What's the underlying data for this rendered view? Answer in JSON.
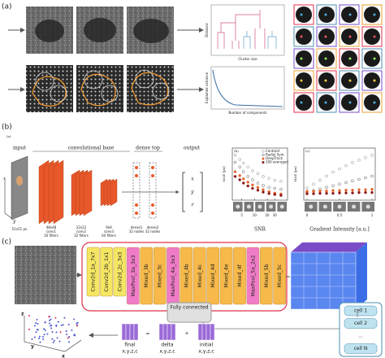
{
  "panel_a": {
    "label": "(a)",
    "dendrogram": {
      "y_label": "Distance",
      "x_label": "Cluster size"
    },
    "pca": {
      "y_label": "Explained variance",
      "x_label": "Number of components"
    }
  },
  "panel_b": {
    "label": "(b)",
    "sublabel": "(a)",
    "network": {
      "input": "input",
      "conv_base": "convolutional base",
      "dense_top": "dense top",
      "output": "output",
      "input_size": "51x51 px",
      "layers": [
        {
          "size": "48x48",
          "name": "conv1",
          "filters": "16 filters"
        },
        {
          "size": "22x22",
          "name": "conv2",
          "filters": "32 filters"
        },
        {
          "size": "9x9",
          "name": "conv3",
          "filters": "64 filters"
        }
      ],
      "dense": [
        {
          "name": "dense1",
          "nodes": "32 nodes"
        },
        {
          "name": "dense2",
          "nodes": "32 nodes"
        }
      ],
      "outputs": [
        "x",
        "y",
        "r"
      ],
      "axes": [
        "x",
        "y"
      ]
    },
    "plot_b": {
      "label": "(b)",
      "y_label": "MAE [px]",
      "x_label": "SNR",
      "log_x": true,
      "xlim": [
        3,
        60
      ],
      "xticks": [
        5,
        10,
        20,
        30
      ],
      "ylim": [
        0,
        1.1
      ],
      "x": [
        3.5,
        4.5,
        5.5,
        7,
        9,
        12,
        16,
        22,
        30,
        42
      ],
      "series": [
        {
          "name": "Centroid",
          "color": "#888888",
          "marker": "open",
          "values": [
            0.95,
            0.86,
            0.78,
            0.7,
            0.62,
            0.56,
            0.5,
            0.46,
            0.42,
            0.4
          ]
        },
        {
          "name": "Radial Sym.",
          "color": "#555555",
          "marker": "open",
          "values": [
            0.8,
            0.7,
            0.6,
            0.5,
            0.43,
            0.36,
            0.31,
            0.27,
            0.25,
            0.23
          ]
        },
        {
          "name": "DeepTrack",
          "color": "#e8642c",
          "marker": "filled",
          "values": [
            0.6,
            0.52,
            0.45,
            0.38,
            0.32,
            0.27,
            0.22,
            0.18,
            0.15,
            0.13
          ]
        },
        {
          "name": "100 averaged",
          "color": "#8b1a1a",
          "marker": "filled",
          "values": [
            0.5,
            0.43,
            0.36,
            0.3,
            0.25,
            0.21,
            0.17,
            0.14,
            0.12,
            0.1
          ]
        }
      ]
    },
    "plot_c": {
      "label": "(c)",
      "y_label": "MAE [px]",
      "x_label": "Gradient Intensity [a.u.]",
      "log_x": false,
      "xlim": [
        -0.05,
        1.05
      ],
      "xticks": [
        0,
        0.5,
        1
      ],
      "ylim": [
        0,
        1.3
      ],
      "x": [
        0,
        0.1,
        0.2,
        0.3,
        0.4,
        0.5,
        0.6,
        0.7,
        0.8,
        0.9,
        1
      ],
      "series": [
        {
          "color": "#888888",
          "marker": "open",
          "values": [
            0.3,
            0.4,
            0.5,
            0.6,
            0.7,
            0.78,
            0.86,
            0.94,
            1.0,
            1.06,
            1.12
          ]
        },
        {
          "color": "#555555",
          "marker": "open",
          "values": [
            0.2,
            0.24,
            0.28,
            0.32,
            0.36,
            0.4,
            0.44,
            0.48,
            0.52,
            0.56,
            0.6
          ]
        },
        {
          "color": "#e8642c",
          "marker": "filled",
          "values": [
            0.22,
            0.22,
            0.23,
            0.23,
            0.24,
            0.24,
            0.25,
            0.25,
            0.26,
            0.26,
            0.27
          ]
        },
        {
          "color": "#8b1a1a",
          "marker": "filled",
          "values": [
            0.16,
            0.16,
            0.17,
            0.17,
            0.17,
            0.18,
            0.18,
            0.18,
            0.19,
            0.19,
            0.19
          ]
        }
      ]
    }
  },
  "panel_c": {
    "label": "(c)",
    "blocks": [
      {
        "label": "Conv2d_1a_7x7",
        "color": "#f5e663"
      },
      {
        "label": "Conv2d_2b_1x1",
        "color": "#f5e663"
      },
      {
        "label": "Conv2d_2c_3x3",
        "color": "#f5e663"
      },
      {
        "label": "MaxPool_3a_3x3",
        "color": "#f07cc8"
      },
      {
        "label": "Mixed_3b",
        "color": "#f7b94a"
      },
      {
        "label": "Mixed_3c",
        "color": "#f7b94a"
      },
      {
        "label": "MaxPool_4a_3x3",
        "color": "#f07cc8"
      },
      {
        "label": "Mixed_4b",
        "color": "#f7b94a"
      },
      {
        "label": "Mixed_4c",
        "color": "#f7b94a"
      },
      {
        "label": "Mixed_4d",
        "color": "#f7b94a"
      },
      {
        "label": "Mixed_4e",
        "color": "#f7b94a"
      },
      {
        "label": "Mixed_4f",
        "color": "#f7b94a"
      },
      {
        "label": "MaxPool_5a_2x2",
        "color": "#f07cc8"
      },
      {
        "label": "Mixed_5b",
        "color": "#f7b94a"
      },
      {
        "label": "Mixed_5c",
        "color": "#f7b94a"
      }
    ],
    "fc": "Fully connected",
    "cells": [
      "cell 1",
      "cell 2",
      "...",
      "cell N"
    ],
    "final": {
      "name": "final",
      "vars": "x,y,z,c"
    },
    "delta": {
      "name": "delta",
      "vars": "x,y,z,c"
    },
    "initial": {
      "name": "initial",
      "vars": "x,y,z,c"
    },
    "equals": "=",
    "plus": "+",
    "axes": [
      "z",
      "y",
      "x"
    ]
  }
}
